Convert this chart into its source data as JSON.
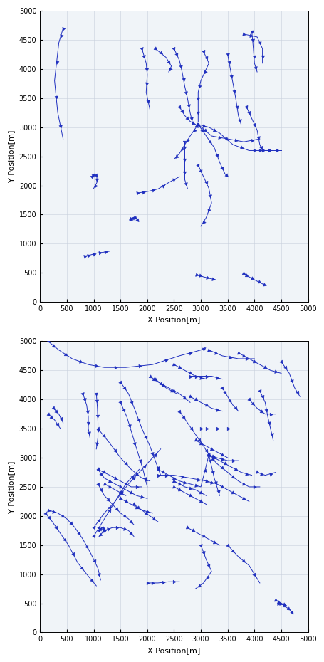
{
  "color": "#1f2fbf",
  "xlim": [
    0,
    5000
  ],
  "ylim": [
    0,
    5000
  ],
  "xlabel": "X Position[m]",
  "ylabel": "Y Position[m]",
  "xticks": [
    0,
    500,
    1000,
    1500,
    2000,
    2500,
    3000,
    3500,
    4000,
    4500,
    5000
  ],
  "yticks": [
    0,
    500,
    1000,
    1500,
    2000,
    2500,
    3000,
    3500,
    4000,
    4500,
    5000
  ],
  "figsize": [
    4.56,
    9.3
  ],
  "dpi": 100,
  "top_trajectories": [
    [
      [
        430,
        4700
      ],
      [
        350,
        4450
      ],
      [
        270,
        3800
      ],
      [
        330,
        3250
      ],
      [
        430,
        2800
      ]
    ],
    [
      [
        3800,
        4600
      ],
      [
        4050,
        4550
      ],
      [
        4150,
        4350
      ],
      [
        4150,
        4100
      ]
    ],
    [
      [
        1900,
        4350
      ],
      [
        1980,
        4100
      ],
      [
        2000,
        3900
      ],
      [
        1980,
        3600
      ],
      [
        2050,
        3300
      ]
    ],
    [
      [
        2150,
        4350
      ],
      [
        2350,
        4200
      ],
      [
        2450,
        4050
      ],
      [
        2400,
        3950
      ]
    ],
    [
      [
        2500,
        4350
      ],
      [
        2600,
        4150
      ],
      [
        2650,
        3950
      ],
      [
        2700,
        3700
      ],
      [
        2750,
        3500
      ],
      [
        2800,
        3250
      ],
      [
        2850,
        3050
      ]
    ],
    [
      [
        3050,
        4300
      ],
      [
        3150,
        4100
      ],
      [
        3000,
        3800
      ],
      [
        2950,
        3600
      ],
      [
        2950,
        3400
      ],
      [
        2950,
        3100
      ]
    ],
    [
      [
        3500,
        4250
      ],
      [
        3550,
        4000
      ],
      [
        3600,
        3750
      ],
      [
        3650,
        3500
      ],
      [
        3700,
        3200
      ],
      [
        3750,
        3050
      ]
    ],
    [
      [
        3950,
        4650
      ],
      [
        3980,
        4350
      ],
      [
        4000,
        4100
      ],
      [
        4050,
        3950
      ]
    ],
    [
      [
        2600,
        3350
      ],
      [
        2700,
        3200
      ],
      [
        2800,
        3100
      ],
      [
        2900,
        3050
      ],
      [
        2950,
        3000
      ]
    ],
    [
      [
        2950,
        3050
      ],
      [
        2800,
        2850
      ],
      [
        2700,
        2700
      ],
      [
        2600,
        2550
      ],
      [
        2500,
        2450
      ]
    ],
    [
      [
        2950,
        3050
      ],
      [
        3100,
        2850
      ],
      [
        3250,
        2650
      ],
      [
        3350,
        2400
      ],
      [
        3450,
        2200
      ],
      [
        3500,
        2150
      ]
    ],
    [
      [
        2950,
        3050
      ],
      [
        3200,
        2850
      ],
      [
        3500,
        2800
      ],
      [
        3800,
        2750
      ],
      [
        4100,
        2800
      ]
    ],
    [
      [
        2950,
        3050
      ],
      [
        3150,
        3000
      ],
      [
        3350,
        2900
      ],
      [
        3600,
        2700
      ],
      [
        3900,
        2600
      ],
      [
        4100,
        2600
      ],
      [
        4200,
        2600
      ],
      [
        4350,
        2600
      ]
    ],
    [
      [
        3850,
        3350
      ],
      [
        3950,
        3150
      ],
      [
        4050,
        2950
      ],
      [
        4100,
        2700
      ],
      [
        4150,
        2600
      ]
    ],
    [
      [
        4100,
        2600
      ],
      [
        4200,
        2600
      ],
      [
        4350,
        2600
      ],
      [
        4500,
        2600
      ]
    ],
    [
      [
        2700,
        2750
      ],
      [
        2700,
        2550
      ],
      [
        2700,
        2350
      ],
      [
        2700,
        2100
      ],
      [
        2750,
        1950
      ]
    ],
    [
      [
        2950,
        2350
      ],
      [
        3050,
        2150
      ],
      [
        3150,
        1950
      ],
      [
        3200,
        1700
      ],
      [
        3100,
        1450
      ],
      [
        3000,
        1300
      ]
    ],
    [
      [
        960,
        2150
      ],
      [
        1020,
        2200
      ],
      [
        1060,
        2150
      ],
      [
        1060,
        2050
      ],
      [
        1000,
        1950
      ]
    ],
    [
      [
        1680,
        1430
      ],
      [
        1720,
        1420
      ],
      [
        1760,
        1460
      ],
      [
        1800,
        1430
      ],
      [
        1830,
        1390
      ]
    ],
    [
      [
        840,
        790
      ],
      [
        950,
        810
      ],
      [
        1060,
        840
      ],
      [
        1160,
        850
      ],
      [
        1290,
        870
      ]
    ],
    [
      [
        2920,
        470
      ],
      [
        3050,
        430
      ],
      [
        3180,
        400
      ],
      [
        3280,
        380
      ]
    ],
    [
      [
        3800,
        490
      ],
      [
        3900,
        430
      ],
      [
        4020,
        370
      ],
      [
        4150,
        310
      ],
      [
        4220,
        280
      ]
    ],
    [
      [
        1820,
        1870
      ],
      [
        2020,
        1900
      ],
      [
        2200,
        1940
      ],
      [
        2400,
        2050
      ],
      [
        2600,
        2150
      ]
    ]
  ],
  "bottom_trajectories": [
    [
      [
        150,
        5000
      ],
      [
        350,
        4850
      ],
      [
        600,
        4700
      ],
      [
        900,
        4600
      ],
      [
        1200,
        4550
      ],
      [
        1600,
        4550
      ],
      [
        2100,
        4600
      ],
      [
        2600,
        4750
      ],
      [
        3000,
        4850
      ],
      [
        3100,
        4900
      ]
    ],
    [
      [
        3150,
        4850
      ],
      [
        3400,
        4750
      ],
      [
        3700,
        4700
      ],
      [
        4000,
        4700
      ]
    ],
    [
      [
        3700,
        4800
      ],
      [
        3900,
        4700
      ],
      [
        4100,
        4600
      ],
      [
        4300,
        4500
      ],
      [
        4500,
        4450
      ]
    ],
    [
      [
        4500,
        4650
      ],
      [
        4650,
        4450
      ],
      [
        4750,
        4200
      ],
      [
        4850,
        4050
      ]
    ],
    [
      [
        800,
        4100
      ],
      [
        870,
        3900
      ],
      [
        900,
        3700
      ],
      [
        900,
        3500
      ],
      [
        930,
        3350
      ]
    ],
    [
      [
        1050,
        4100
      ],
      [
        1070,
        3850
      ],
      [
        1080,
        3600
      ],
      [
        1080,
        3350
      ],
      [
        1050,
        3150
      ]
    ],
    [
      [
        250,
        3850
      ],
      [
        350,
        3750
      ],
      [
        430,
        3600
      ]
    ],
    [
      [
        150,
        3750
      ],
      [
        270,
        3650
      ],
      [
        380,
        3500
      ]
    ],
    [
      [
        160,
        2100
      ],
      [
        330,
        2050
      ],
      [
        500,
        1950
      ],
      [
        650,
        1800
      ],
      [
        800,
        1600
      ],
      [
        950,
        1350
      ],
      [
        1080,
        1100
      ],
      [
        1130,
        900
      ]
    ],
    [
      [
        100,
        2050
      ],
      [
        230,
        1900
      ],
      [
        380,
        1700
      ],
      [
        530,
        1500
      ],
      [
        700,
        1200
      ],
      [
        870,
        1000
      ],
      [
        1050,
        800
      ]
    ],
    [
      [
        1100,
        1750
      ],
      [
        1150,
        1800
      ],
      [
        1200,
        1780
      ],
      [
        1150,
        1700
      ],
      [
        1100,
        1650
      ]
    ],
    [
      [
        1080,
        2550
      ],
      [
        1200,
        2350
      ],
      [
        1350,
        2200
      ],
      [
        1500,
        2050
      ],
      [
        1650,
        1950
      ],
      [
        1750,
        1850
      ]
    ],
    [
      [
        1080,
        2800
      ],
      [
        1200,
        2650
      ],
      [
        1400,
        2550
      ],
      [
        1600,
        2450
      ],
      [
        1800,
        2350
      ],
      [
        2000,
        2300
      ]
    ],
    [
      [
        1080,
        3500
      ],
      [
        1300,
        3250
      ],
      [
        1500,
        3000
      ],
      [
        1700,
        2800
      ],
      [
        1900,
        2650
      ],
      [
        2050,
        2600
      ]
    ],
    [
      [
        1080,
        2800
      ],
      [
        1300,
        2700
      ],
      [
        1500,
        2600
      ],
      [
        1700,
        2500
      ],
      [
        1900,
        2500
      ]
    ],
    [
      [
        1200,
        1750
      ],
      [
        1350,
        1800
      ],
      [
        1500,
        1800
      ],
      [
        1650,
        1750
      ],
      [
        1750,
        1650
      ]
    ],
    [
      [
        1000,
        1800
      ],
      [
        1200,
        2050
      ],
      [
        1400,
        2250
      ],
      [
        1650,
        2550
      ],
      [
        1850,
        2750
      ],
      [
        2050,
        2950
      ],
      [
        2250,
        3150
      ]
    ],
    [
      [
        1000,
        1650
      ],
      [
        1200,
        1950
      ],
      [
        1400,
        2250
      ],
      [
        1600,
        2550
      ],
      [
        1850,
        2800
      ]
    ],
    [
      [
        1500,
        4300
      ],
      [
        1650,
        4100
      ],
      [
        1780,
        3800
      ],
      [
        1900,
        3500
      ],
      [
        2050,
        3200
      ],
      [
        2150,
        2950
      ],
      [
        2250,
        2700
      ]
    ],
    [
      [
        1500,
        3950
      ],
      [
        1620,
        3700
      ],
      [
        1720,
        3400
      ],
      [
        1820,
        3100
      ],
      [
        1920,
        2800
      ],
      [
        2000,
        2500
      ]
    ],
    [
      [
        2050,
        4400
      ],
      [
        2200,
        4300
      ],
      [
        2400,
        4200
      ],
      [
        2600,
        4100
      ],
      [
        2800,
        3950
      ]
    ],
    [
      [
        2150,
        4350
      ],
      [
        2350,
        4200
      ],
      [
        2550,
        4100
      ]
    ],
    [
      [
        2500,
        4600
      ],
      [
        2700,
        4500
      ],
      [
        2900,
        4400
      ],
      [
        3100,
        4350
      ]
    ],
    [
      [
        2800,
        4050
      ],
      [
        3000,
        3950
      ],
      [
        3200,
        3850
      ],
      [
        3400,
        3800
      ]
    ],
    [
      [
        2600,
        3800
      ],
      [
        2750,
        3600
      ],
      [
        2900,
        3400
      ],
      [
        3050,
        3200
      ],
      [
        3150,
        3050
      ]
    ],
    [
      [
        3150,
        3050
      ],
      [
        3300,
        3000
      ],
      [
        3500,
        2950
      ],
      [
        3700,
        2950
      ]
    ],
    [
      [
        3150,
        3050
      ],
      [
        3200,
        2850
      ],
      [
        3250,
        2650
      ],
      [
        3300,
        2500
      ],
      [
        3350,
        2350
      ]
    ],
    [
      [
        3150,
        3050
      ],
      [
        3350,
        2950
      ],
      [
        3550,
        2850
      ],
      [
        3750,
        2750
      ],
      [
        3950,
        2700
      ]
    ],
    [
      [
        3150,
        3050
      ],
      [
        3300,
        2900
      ],
      [
        3500,
        2750
      ],
      [
        3700,
        2600
      ],
      [
        3900,
        2500
      ],
      [
        4100,
        2500
      ]
    ],
    [
      [
        2200,
        2800
      ],
      [
        2400,
        2700
      ],
      [
        2600,
        2600
      ],
      [
        2800,
        2550
      ],
      [
        3000,
        2500
      ],
      [
        3150,
        3050
      ]
    ],
    [
      [
        2200,
        2700
      ],
      [
        2500,
        2700
      ],
      [
        2800,
        2650
      ],
      [
        3100,
        2600
      ]
    ],
    [
      [
        2500,
        2600
      ],
      [
        2700,
        2500
      ],
      [
        2900,
        2450
      ],
      [
        3100,
        2350
      ]
    ],
    [
      [
        2500,
        2500
      ],
      [
        2700,
        2400
      ],
      [
        2900,
        2300
      ],
      [
        3100,
        2200
      ]
    ],
    [
      [
        3400,
        4200
      ],
      [
        3500,
        4050
      ],
      [
        3600,
        3900
      ],
      [
        3700,
        3800
      ]
    ],
    [
      [
        3900,
        4000
      ],
      [
        4050,
        3850
      ],
      [
        4200,
        3750
      ],
      [
        4400,
        3750
      ]
    ],
    [
      [
        4100,
        4150
      ],
      [
        4200,
        3950
      ],
      [
        4250,
        3700
      ],
      [
        4300,
        3500
      ],
      [
        4350,
        3300
      ]
    ],
    [
      [
        4050,
        2750
      ],
      [
        4200,
        2700
      ],
      [
        4400,
        2750
      ]
    ],
    [
      [
        3000,
        1500
      ],
      [
        3100,
        1250
      ],
      [
        3200,
        1050
      ],
      [
        3050,
        850
      ],
      [
        2900,
        750
      ]
    ],
    [
      [
        2000,
        850
      ],
      [
        2200,
        850
      ],
      [
        2400,
        870
      ],
      [
        2600,
        870
      ]
    ],
    [
      [
        2750,
        1800
      ],
      [
        2950,
        1700
      ],
      [
        3150,
        1600
      ],
      [
        3350,
        1500
      ]
    ],
    [
      [
        3500,
        1500
      ],
      [
        3700,
        1300
      ],
      [
        3900,
        1150
      ],
      [
        4100,
        850
      ]
    ],
    [
      [
        1500,
        2300
      ],
      [
        1700,
        2200
      ],
      [
        1900,
        2100
      ],
      [
        2100,
        2050
      ]
    ],
    [
      [
        1200,
        2550
      ],
      [
        1400,
        2450
      ],
      [
        1600,
        2350
      ]
    ],
    [
      [
        2800,
        4400
      ],
      [
        3000,
        4400
      ],
      [
        3200,
        4400
      ],
      [
        3400,
        4350
      ]
    ],
    [
      [
        3000,
        3500
      ],
      [
        3200,
        3500
      ],
      [
        3400,
        3500
      ],
      [
        3600,
        3500
      ]
    ],
    [
      [
        2900,
        3300
      ],
      [
        3100,
        3200
      ],
      [
        3300,
        3100
      ],
      [
        3500,
        3000
      ]
    ],
    [
      [
        4450,
        500
      ],
      [
        4520,
        480
      ],
      [
        4600,
        430
      ],
      [
        4670,
        380
      ],
      [
        4720,
        310
      ]
    ],
    [
      [
        4400,
        550
      ],
      [
        4500,
        500
      ],
      [
        4600,
        460
      ]
    ],
    [
      [
        1750,
        2200
      ],
      [
        1900,
        2100
      ],
      [
        2050,
        2000
      ],
      [
        2200,
        1900
      ]
    ],
    [
      [
        3100,
        2600
      ],
      [
        3300,
        2550
      ],
      [
        3500,
        2450
      ],
      [
        3700,
        2350
      ],
      [
        3900,
        2250
      ]
    ]
  ]
}
